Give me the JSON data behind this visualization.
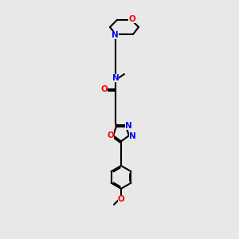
{
  "bg_color": "#e8e8e8",
  "atom_color_N": "#0000ff",
  "atom_color_O": "#ff0000",
  "atom_color_C": "#000000",
  "line_color": "#000000",
  "line_width": 1.5,
  "font_size_atom": 7.5,
  "fig_size": [
    3.0,
    3.0
  ],
  "dpi": 100,
  "xlim": [
    0,
    10
  ],
  "ylim": [
    0,
    15
  ]
}
